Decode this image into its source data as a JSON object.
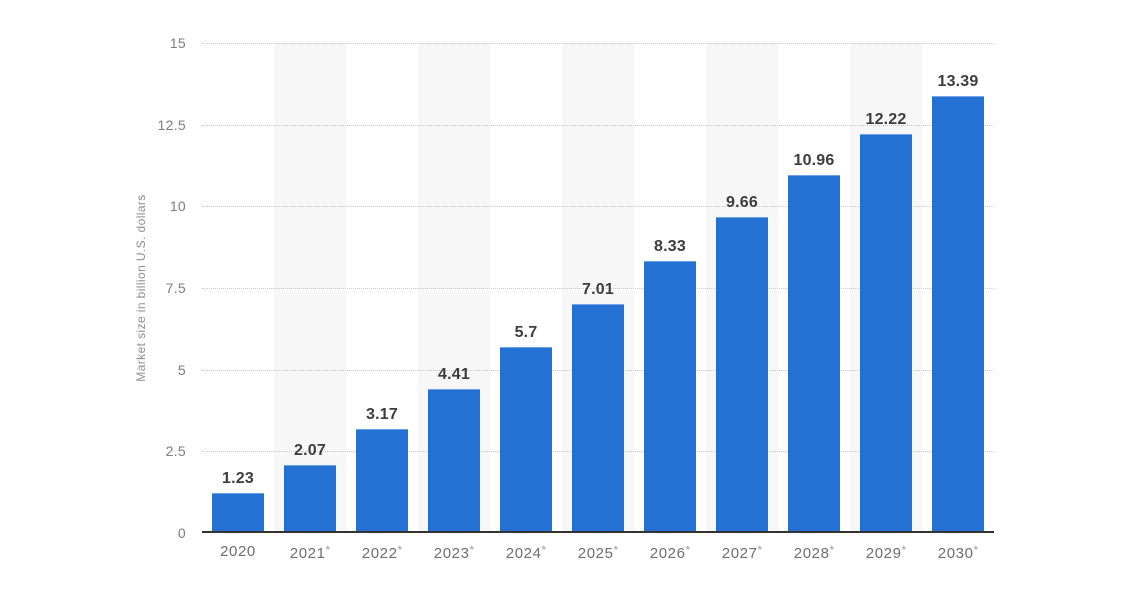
{
  "chart_data": {
    "type": "bar",
    "categories": [
      "2020",
      "2021*",
      "2022*",
      "2023*",
      "2024*",
      "2025*",
      "2026*",
      "2027*",
      "2028*",
      "2029*",
      "2030*"
    ],
    "values": [
      1.23,
      2.07,
      3.17,
      4.41,
      5.7,
      7.01,
      8.33,
      9.66,
      10.96,
      12.22,
      13.39
    ],
    "value_labels": [
      "1.23",
      "2.07",
      "3.17",
      "4.41",
      "5.7",
      "7.01",
      "8.33",
      "9.66",
      "10.96",
      "12.22",
      "13.39"
    ],
    "xlabel": "",
    "ylabel": "Market size in billion U.S. dollars",
    "ylim": [
      0,
      15
    ],
    "yticks": [
      0,
      2.5,
      5,
      7.5,
      10,
      12.5,
      15
    ],
    "ytick_labels": [
      "0",
      "2.5",
      "5",
      "7.5",
      "10",
      "12.5",
      "15"
    ],
    "grid": "horizontal-dotted",
    "legend": "none",
    "banded_columns": [
      1,
      3,
      5,
      7,
      9
    ],
    "colors": {
      "bar": "#2571d3",
      "column_band": "#f7f7f7",
      "gridline": "#c9c9c9",
      "axis_line": "#333333",
      "value_label": "#3d3d3d",
      "x_tick_label": "#6e6e6e",
      "y_tick_label": "#7d7d7d",
      "y_axis_title": "#8f8f8f"
    }
  }
}
